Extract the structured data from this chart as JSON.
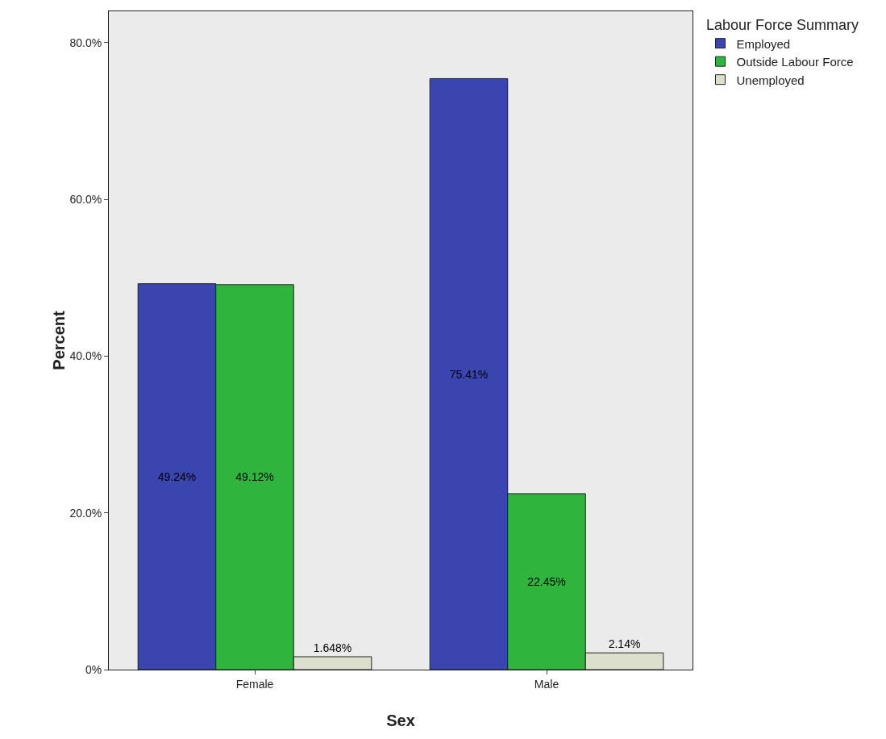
{
  "chart_data": {
    "type": "bar",
    "xlabel": "Sex",
    "ylabel": "Percent",
    "legend_title": "Labour Force Summary",
    "categories": [
      "Female",
      "Male"
    ],
    "series": [
      {
        "name": "Employed",
        "color": "#3a45b0",
        "values": [
          49.24,
          75.41
        ],
        "value_labels": [
          "49.24%",
          "75.41%"
        ]
      },
      {
        "name": "Outside Labour Force",
        "color": "#2fb53e",
        "values": [
          49.12,
          22.45
        ],
        "value_labels": [
          "49.12%",
          "22.45%"
        ]
      },
      {
        "name": "Unemployed",
        "color": "#dcdfcc",
        "values": [
          1.648,
          2.14
        ],
        "value_labels": [
          "1.648%",
          "2.14%"
        ]
      }
    ],
    "ylim": [
      0,
      84
    ],
    "yticks": [
      {
        "value": 0,
        "label": "0%"
      },
      {
        "value": 20,
        "label": "20.0%"
      },
      {
        "value": 40,
        "label": "40.0%"
      },
      {
        "value": 60,
        "label": "60.0%"
      },
      {
        "value": 80,
        "label": "80.0%"
      }
    ],
    "grid": false,
    "legend": "top right"
  }
}
